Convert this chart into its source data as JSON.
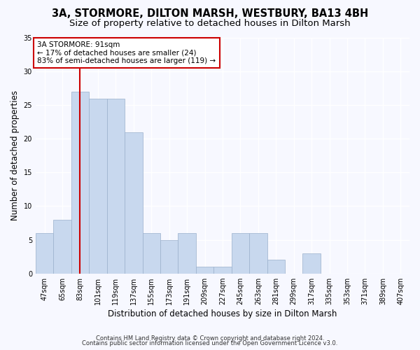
{
  "title1": "3A, STORMORE, DILTON MARSH, WESTBURY, BA13 4BH",
  "title2": "Size of property relative to detached houses in Dilton Marsh",
  "xlabel": "Distribution of detached houses by size in Dilton Marsh",
  "ylabel": "Number of detached properties",
  "categories": [
    "47sqm",
    "65sqm",
    "83sqm",
    "101sqm",
    "119sqm",
    "137sqm",
    "155sqm",
    "173sqm",
    "191sqm",
    "209sqm",
    "227sqm",
    "245sqm",
    "263sqm",
    "281sqm",
    "299sqm",
    "317sqm",
    "335sqm",
    "353sqm",
    "371sqm",
    "389sqm",
    "407sqm"
  ],
  "values": [
    6,
    8,
    27,
    26,
    26,
    21,
    6,
    5,
    6,
    1,
    1,
    6,
    6,
    2,
    0,
    3,
    0,
    0,
    0,
    0,
    0
  ],
  "bar_color": "#c8d8ee",
  "bar_edge_color": "#9ab0cc",
  "vline_x_index": 2,
  "vline_color": "#cc0000",
  "annotation_line1": "3A STORMORE: 91sqm",
  "annotation_line2": "← 17% of detached houses are smaller (24)",
  "annotation_line3": "83% of semi-detached houses are larger (119) →",
  "annotation_box_color": "#ffffff",
  "annotation_box_edge": "#cc0000",
  "footer1": "Contains HM Land Registry data © Crown copyright and database right 2024.",
  "footer2": "Contains public sector information licensed under the Open Government Licence v3.0.",
  "background_color": "#f7f8ff",
  "plot_bg_color": "#f7f8ff",
  "ylim": [
    0,
    35
  ],
  "yticks": [
    0,
    5,
    10,
    15,
    20,
    25,
    30,
    35
  ],
  "grid_color": "#ffffff",
  "title_fontsize": 10.5,
  "subtitle_fontsize": 9.5,
  "tick_fontsize": 7,
  "label_fontsize": 8.5,
  "annotation_fontsize": 7.5,
  "footer_fontsize": 6
}
